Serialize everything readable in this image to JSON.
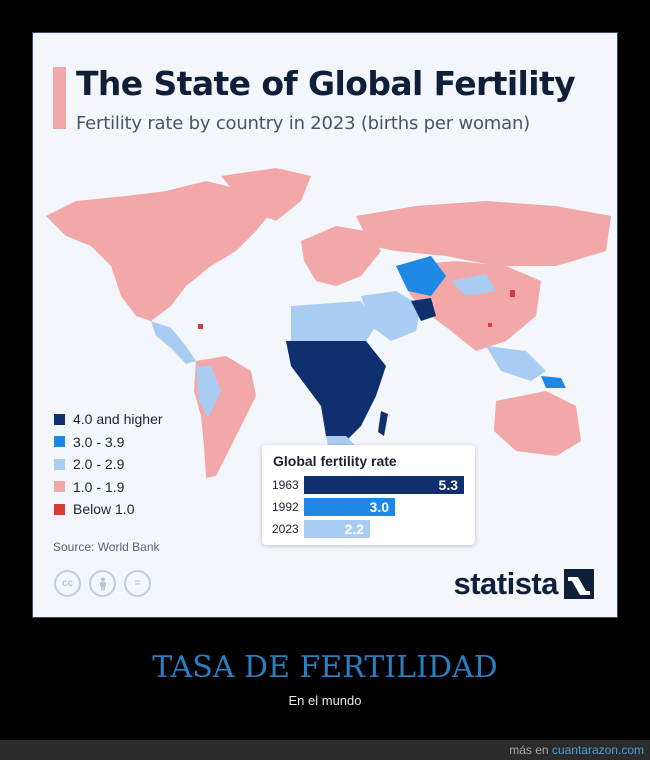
{
  "title": "The State of Global Fertility",
  "subtitle": "Fertility rate by country in 2023 (births per woman)",
  "legend": [
    {
      "label": "4.0 and higher",
      "color": "#0f2f6e"
    },
    {
      "label": "3.0 - 3.9",
      "color": "#1e88e5"
    },
    {
      "label": "2.0 - 2.9",
      "color": "#a9cdf2"
    },
    {
      "label": "1.0 - 1.9",
      "color": "#f2a7a9"
    },
    {
      "label": "Below 1.0",
      "color": "#d63b35"
    }
  ],
  "source": "Source: World Bank",
  "brand": "statista",
  "caption": {
    "title": "TASA DE FERTILIDAD",
    "subtitle": "En el mundo"
  },
  "footer": {
    "prefix": "más en ",
    "link": "cuantarazon.com"
  },
  "cc_icons": [
    {
      "name": "creative-commons-icon",
      "glyph": "cc"
    },
    {
      "name": "attribution-icon",
      "glyph": "🛉"
    },
    {
      "name": "no-derivatives-icon",
      "glyph": "="
    }
  ],
  "chart_data": {
    "type": "bar",
    "title": "Global fertility rate",
    "categories": [
      "1963",
      "1992",
      "2023"
    ],
    "values": [
      5.3,
      3.0,
      2.2
    ],
    "value_labels": [
      "5.3",
      "3.0",
      "2.2"
    ],
    "colors": [
      "#0f2f6e",
      "#1e88e5",
      "#a9cdf2"
    ],
    "xlim": [
      0,
      5.3
    ],
    "orientation": "horizontal"
  }
}
